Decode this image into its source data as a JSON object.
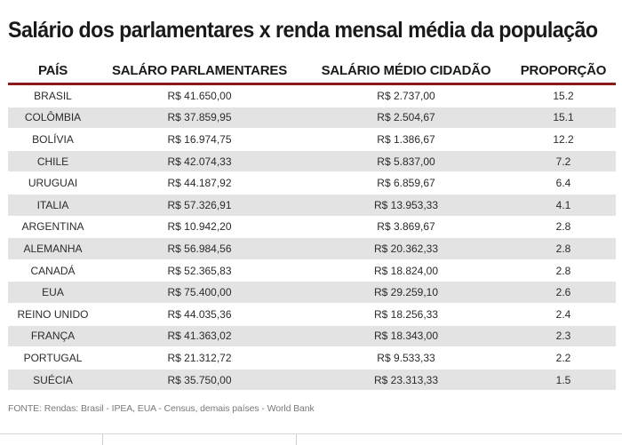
{
  "chart_data": {
    "type": "table",
    "title": "Salário dos parlamentares x renda mensal média da população",
    "columns": [
      "PAÍS",
      "SALÁRO PARLAMENTARES",
      "SALÁRIO MÉDIO CIDADÃO",
      "PROPORÇÃO"
    ],
    "rows": [
      {
        "country": "BRASIL",
        "parl": "R$ 41.650,00",
        "citizen": "R$ 2.737,00",
        "ratio": "15.2"
      },
      {
        "country": "COLÔMBIA",
        "parl": "R$ 37.859,95",
        "citizen": "R$ 2.504,67",
        "ratio": "15.1"
      },
      {
        "country": "BOLÍVIA",
        "parl": "R$ 16.974,75",
        "citizen": "R$ 1.386,67",
        "ratio": "12.2"
      },
      {
        "country": "CHILE",
        "parl": "R$ 42.074,33",
        "citizen": "R$ 5.837,00",
        "ratio": "7.2"
      },
      {
        "country": "URUGUAI",
        "parl": "R$ 44.187,92",
        "citizen": "R$ 6.859,67",
        "ratio": "6.4"
      },
      {
        "country": "ITALIA",
        "parl": "R$ 57.326,91",
        "citizen": "R$ 13.953,33",
        "ratio": "4.1"
      },
      {
        "country": "ARGENTINA",
        "parl": "R$ 10.942,20",
        "citizen": "R$ 3.869,67",
        "ratio": "2.8"
      },
      {
        "country": "ALEMANHA",
        "parl": "R$ 56.984,56",
        "citizen": "R$ 20.362,33",
        "ratio": "2.8"
      },
      {
        "country": "CANADÁ",
        "parl": "R$ 52.365,83",
        "citizen": "R$ 18.824,00",
        "ratio": "2.8"
      },
      {
        "country": "EUA",
        "parl": "R$ 75.400,00",
        "citizen": "R$ 29.259,10",
        "ratio": "2.6"
      },
      {
        "country": "REINO UNIDO",
        "parl": "R$ 44.035,36",
        "citizen": "R$ 18.256,33",
        "ratio": "2.4"
      },
      {
        "country": "FRANÇA",
        "parl": "R$ 41.363,02",
        "citizen": "R$ 18.343,00",
        "ratio": "2.3"
      },
      {
        "country": "PORTUGAL",
        "parl": "R$ 21.312,72",
        "citizen": "R$ 9.533,33",
        "ratio": "2.2"
      },
      {
        "country": "SUÉCIA",
        "parl": "R$ 35.750,00",
        "citizen": "R$ 23.313,33",
        "ratio": "1.5"
      }
    ],
    "source": "FONTE: Rendas: Brasil - IPEA, EUA - Census, demais países - World Bank"
  },
  "colors": {
    "header_rule": "#8b1a1a",
    "stripe": "#e3e3e3"
  }
}
